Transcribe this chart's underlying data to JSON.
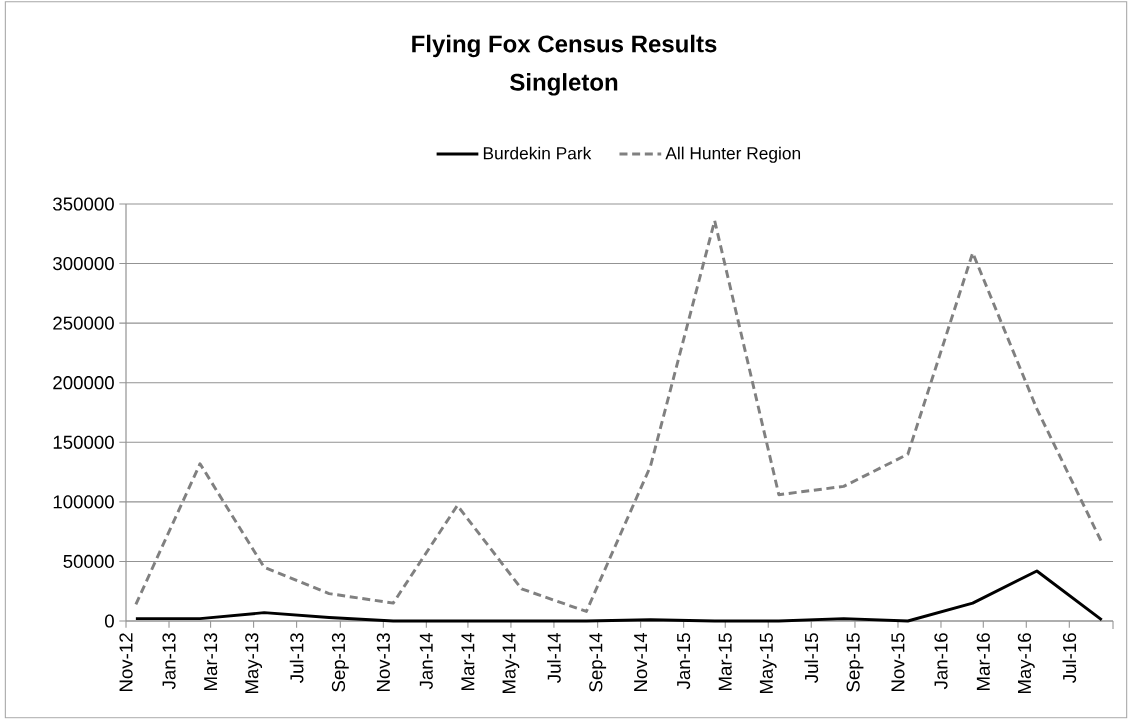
{
  "chart_data": {
    "type": "line",
    "title": "Flying Fox Census Results",
    "subtitle": "Singleton",
    "x": [
      "2012-11-15",
      "2013-02-14",
      "2013-05-16",
      "2013-08-16",
      "2013-11-15",
      "2014-02-14",
      "2014-05-16",
      "2014-08-16",
      "2014-11-15",
      "2015-02-14",
      "2015-05-16",
      "2015-08-16",
      "2015-11-15",
      "2016-02-15",
      "2016-05-16",
      "2016-08-16"
    ],
    "series": [
      {
        "name": "Burdekin Park",
        "color": "#000000",
        "line_style": "solid",
        "values": [
          2000,
          2000,
          7000,
          3000,
          0,
          0,
          0,
          0,
          1000,
          0,
          0,
          2000,
          0,
          15000,
          42000,
          1000
        ]
      },
      {
        "name": "All Hunter Region",
        "color": "#808080",
        "line_style": "dashed",
        "values": [
          14000,
          132000,
          45000,
          23000,
          15000,
          97000,
          27000,
          8000,
          130000,
          336000,
          106000,
          113000,
          140000,
          309000,
          178000,
          66000
        ]
      }
    ],
    "xlim": [
      "2012-11-01",
      "2016-09-01"
    ],
    "xticks": [
      {
        "value": "2012-11",
        "label": "Nov-12"
      },
      {
        "value": "2013-01",
        "label": "Jan-13"
      },
      {
        "value": "2013-03",
        "label": "Mar-13"
      },
      {
        "value": "2013-05",
        "label": "May-13"
      },
      {
        "value": "2013-07",
        "label": "Jul-13"
      },
      {
        "value": "2013-09",
        "label": "Sep-13"
      },
      {
        "value": "2013-11",
        "label": "Nov-13"
      },
      {
        "value": "2014-01",
        "label": "Jan-14"
      },
      {
        "value": "2014-03",
        "label": "Mar-14"
      },
      {
        "value": "2014-05",
        "label": "May-14"
      },
      {
        "value": "2014-07",
        "label": "Jul-14"
      },
      {
        "value": "2014-09",
        "label": "Sep-14"
      },
      {
        "value": "2014-11",
        "label": "Nov-14"
      },
      {
        "value": "2015-01",
        "label": "Jan-15"
      },
      {
        "value": "2015-03",
        "label": "Mar-15"
      },
      {
        "value": "2015-05",
        "label": "May-15"
      },
      {
        "value": "2015-07",
        "label": "Jul-15"
      },
      {
        "value": "2015-09",
        "label": "Sep-15"
      },
      {
        "value": "2015-11",
        "label": "Nov-15"
      },
      {
        "value": "2016-01",
        "label": "Jan-16"
      },
      {
        "value": "2016-03",
        "label": "Mar-16"
      },
      {
        "value": "2016-05",
        "label": "May-16"
      },
      {
        "value": "2016-07",
        "label": "Jul-16"
      }
    ],
    "ylim": [
      0,
      350000
    ],
    "yticks": [
      0,
      50000,
      100000,
      150000,
      200000,
      250000,
      300000,
      350000
    ],
    "grid": "y",
    "legend": "top",
    "marker": "none"
  }
}
